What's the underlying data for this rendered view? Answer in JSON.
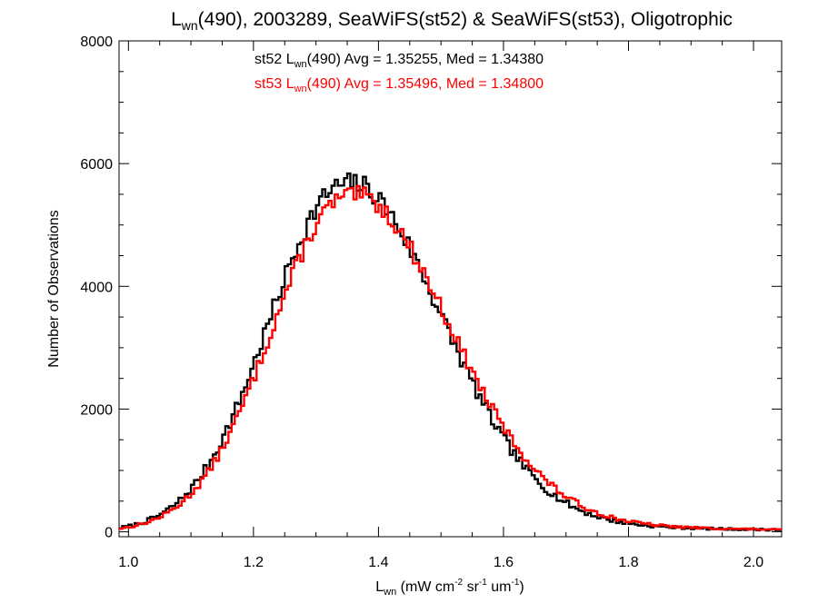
{
  "chart_data": {
    "type": "line",
    "step": true,
    "title": {
      "prefix": "L",
      "sub": "wn",
      "suffix": "(490), 2003289, SeaWiFS(st52) & SeaWiFS(st53), Oligotrophic"
    },
    "xlabel": {
      "prefix": "L",
      "sub": "wn",
      "parts": [
        {
          "t": " (mW cm"
        },
        {
          "sup": "-2"
        },
        {
          "t": " sr"
        },
        {
          "sup": "-1"
        },
        {
          "t": " um"
        },
        {
          "sup": "-1"
        },
        {
          "t": ")"
        }
      ]
    },
    "ylabel": "Number of Observations",
    "xlim": [
      0.985,
      2.045
    ],
    "ylim": [
      -80,
      8000
    ],
    "xticks": [
      1.0,
      1.2,
      1.4,
      1.6,
      1.8,
      2.0
    ],
    "xtick_labels": [
      "1.0",
      "1.2",
      "1.4",
      "1.6",
      "1.8",
      "2.0"
    ],
    "yticks": [
      0,
      2000,
      4000,
      6000,
      8000
    ],
    "ytick_labels": [
      "0",
      "2000",
      "4000",
      "6000",
      "8000"
    ],
    "xminor_step": 0.05,
    "yminor_step": 500,
    "grid": false,
    "distribution": {
      "bin_width": 0.005,
      "range": [
        0.985,
        2.045
      ]
    },
    "series": [
      {
        "name": "st52",
        "color": "#000000",
        "peak": 5650,
        "mode": 1.345,
        "sigma_left": 0.12,
        "sigma_right": 0.152,
        "tail_weight": 0.06,
        "tail_sigma": 0.3,
        "jitter": 180,
        "seed": 7
      },
      {
        "name": "st53",
        "color": "#ff0000",
        "peak": 5450,
        "mode": 1.35,
        "sigma_left": 0.12,
        "sigma_right": 0.158,
        "tail_weight": 0.065,
        "tail_sigma": 0.3,
        "jitter": 150,
        "seed": 13
      }
    ],
    "annotations": [
      {
        "series": "st52",
        "color": "#000000",
        "prefix": "st52 L",
        "sub": "wn",
        "suffix": "(490) Avg = 1.35255, Med = 1.34380"
      },
      {
        "series": "st53",
        "color": "#ff0000",
        "prefix": "st53 L",
        "sub": "wn",
        "suffix": "(490) Avg = 1.35496, Med = 1.34800"
      }
    ]
  }
}
